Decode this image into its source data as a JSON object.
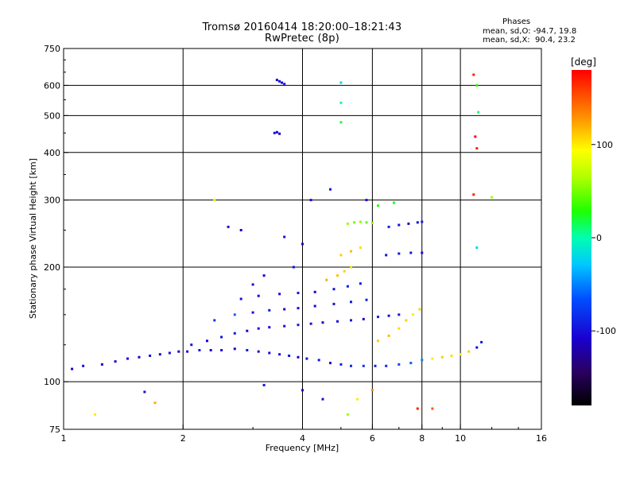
{
  "title": "Tromsø 20160414 18:20:00–18:21:43",
  "subtitle": "RwPretec (8p)",
  "phase_stats": {
    "heading": "Phases",
    "line1": "mean, sd,O: -94.7, 19.8",
    "line2": "mean, sd,X:  90.4, 23.2"
  },
  "colorbar": {
    "label": "[deg]",
    "range": [
      -180,
      180
    ],
    "ticks": [
      100,
      0,
      -100
    ],
    "tick_labels": [
      "100",
      "0",
      "-100"
    ]
  },
  "chart_data": {
    "type": "scatter",
    "title": "Tromsø 20160414 18:20:00–18:21:43",
    "subtitle": "RwPretec (8p)",
    "xlabel": "Frequency [MHz]",
    "ylabel": "Stationary phase Virtual Height [km]",
    "x_scale": "log",
    "y_scale": "log",
    "xlim": [
      1,
      16
    ],
    "ylim": [
      75,
      750
    ],
    "x_ticks": [
      1,
      2,
      4,
      6,
      8,
      10,
      16
    ],
    "x_tick_labels": [
      "1",
      "2",
      "4",
      "6",
      "8",
      "10",
      "16"
    ],
    "y_ticks": [
      75,
      100,
      200,
      300,
      400,
      500,
      600,
      750
    ],
    "y_tick_labels": [
      "75",
      "100",
      "200",
      "300",
      "400",
      "500",
      "600",
      "750"
    ],
    "grid": true,
    "color_variable": "phase [deg]",
    "points": [
      [
        1.05,
        108,
        -110
      ],
      [
        1.12,
        110,
        -100
      ],
      [
        1.25,
        111,
        -105
      ],
      [
        1.35,
        113,
        -115
      ],
      [
        1.45,
        115,
        -100
      ],
      [
        1.55,
        116,
        -110
      ],
      [
        1.65,
        117,
        -95
      ],
      [
        1.75,
        118,
        -105
      ],
      [
        1.85,
        119,
        -100
      ],
      [
        1.95,
        120,
        -110
      ],
      [
        2.05,
        120,
        -100
      ],
      [
        2.2,
        121,
        -95
      ],
      [
        2.35,
        121,
        -105
      ],
      [
        2.5,
        121,
        -100
      ],
      [
        2.7,
        122,
        -110
      ],
      [
        2.9,
        121,
        -95
      ],
      [
        3.1,
        120,
        -100
      ],
      [
        3.3,
        119,
        -105
      ],
      [
        3.5,
        118,
        -100
      ],
      [
        3.7,
        117,
        -95
      ],
      [
        3.9,
        116,
        -110
      ],
      [
        4.1,
        115,
        -100
      ],
      [
        4.4,
        114,
        -95
      ],
      [
        4.7,
        112,
        -100
      ],
      [
        5.0,
        111,
        -90
      ],
      [
        5.3,
        110,
        -85
      ],
      [
        5.7,
        110,
        -80
      ],
      [
        6.1,
        110,
        -90
      ],
      [
        6.5,
        110,
        -85
      ],
      [
        7.0,
        111,
        -70
      ],
      [
        7.5,
        112,
        -60
      ],
      [
        8.0,
        114,
        -50
      ],
      [
        8.5,
        115,
        100
      ],
      [
        9.0,
        116,
        110
      ],
      [
        9.5,
        117,
        105
      ],
      [
        10.0,
        118,
        100
      ],
      [
        10.5,
        120,
        110
      ],
      [
        11.0,
        123,
        -100
      ],
      [
        11.3,
        127,
        -95
      ],
      [
        2.1,
        125,
        -100
      ],
      [
        2.3,
        128,
        -110
      ],
      [
        2.5,
        131,
        -100
      ],
      [
        2.7,
        134,
        -95
      ],
      [
        2.9,
        136,
        -105
      ],
      [
        3.1,
        138,
        -100
      ],
      [
        3.3,
        139,
        -110
      ],
      [
        3.6,
        140,
        -100
      ],
      [
        3.9,
        141,
        -95
      ],
      [
        4.2,
        142,
        -100
      ],
      [
        4.5,
        143,
        -110
      ],
      [
        4.9,
        144,
        -100
      ],
      [
        5.3,
        145,
        -95
      ],
      [
        5.7,
        146,
        -105
      ],
      [
        6.2,
        148,
        -90
      ],
      [
        6.6,
        149,
        -100
      ],
      [
        7.0,
        150,
        -95
      ],
      [
        2.4,
        145,
        -80
      ],
      [
        2.7,
        150,
        -60
      ],
      [
        3.0,
        152,
        -100
      ],
      [
        3.3,
        154,
        -95
      ],
      [
        3.6,
        155,
        -110
      ],
      [
        3.9,
        156,
        -100
      ],
      [
        4.3,
        158,
        -105
      ],
      [
        4.8,
        160,
        -100
      ],
      [
        5.3,
        162,
        -95
      ],
      [
        5.8,
        164,
        -90
      ],
      [
        2.8,
        165,
        -100
      ],
      [
        3.1,
        168,
        -105
      ],
      [
        3.5,
        170,
        -100
      ],
      [
        3.9,
        171,
        -95
      ],
      [
        4.3,
        172,
        -110
      ],
      [
        4.8,
        175,
        -100
      ],
      [
        5.2,
        178,
        -90
      ],
      [
        5.6,
        181,
        -95
      ],
      [
        4.6,
        185,
        120
      ],
      [
        4.9,
        190,
        115
      ],
      [
        5.1,
        195,
        110
      ],
      [
        5.3,
        200,
        105
      ],
      [
        5.0,
        215,
        110
      ],
      [
        5.3,
        220,
        115
      ],
      [
        5.6,
        225,
        105
      ],
      [
        5.2,
        260,
        60
      ],
      [
        5.4,
        262,
        50
      ],
      [
        5.6,
        263,
        55
      ],
      [
        5.8,
        262,
        45
      ],
      [
        6.0,
        261,
        60
      ],
      [
        6.6,
        255,
        -90
      ],
      [
        7.0,
        258,
        -100
      ],
      [
        7.4,
        260,
        -110
      ],
      [
        7.8,
        262,
        -100
      ],
      [
        8.0,
        263,
        -95
      ],
      [
        6.5,
        215,
        -100
      ],
      [
        7.0,
        217,
        -95
      ],
      [
        7.5,
        218,
        -100
      ],
      [
        8.0,
        218,
        -105
      ],
      [
        6.2,
        128,
        110
      ],
      [
        6.6,
        132,
        115
      ],
      [
        7.0,
        138,
        105
      ],
      [
        7.3,
        145,
        110
      ],
      [
        7.6,
        150,
        100
      ],
      [
        7.9,
        155,
        110
      ],
      [
        3.45,
        620,
        -110
      ],
      [
        3.5,
        615,
        -100
      ],
      [
        3.55,
        610,
        -105
      ],
      [
        3.6,
        605,
        -95
      ],
      [
        3.4,
        450,
        -100
      ],
      [
        3.45,
        452,
        -105
      ],
      [
        3.5,
        448,
        -110
      ],
      [
        5.0,
        610,
        -20
      ],
      [
        5.0,
        540,
        0
      ],
      [
        5.0,
        480,
        20
      ],
      [
        10.8,
        640,
        170
      ],
      [
        11.0,
        600,
        30
      ],
      [
        11.1,
        510,
        10
      ],
      [
        10.9,
        440,
        180
      ],
      [
        11.0,
        410,
        170
      ],
      [
        10.8,
        310,
        170
      ],
      [
        12.0,
        305,
        60
      ],
      [
        11.0,
        225,
        -20
      ],
      [
        2.4,
        300,
        90
      ],
      [
        2.6,
        255,
        -100
      ],
      [
        2.8,
        250,
        -110
      ],
      [
        3.0,
        180,
        -100
      ],
      [
        3.2,
        190,
        -105
      ],
      [
        3.6,
        240,
        -100
      ],
      [
        3.8,
        200,
        -95
      ],
      [
        4.0,
        230,
        -110
      ],
      [
        4.2,
        300,
        -100
      ],
      [
        4.7,
        320,
        -95
      ],
      [
        5.8,
        300,
        -100
      ],
      [
        6.2,
        290,
        30
      ],
      [
        6.8,
        295,
        20
      ],
      [
        4.0,
        95,
        -110
      ],
      [
        4.5,
        90,
        -100
      ],
      [
        5.2,
        82,
        60
      ],
      [
        5.5,
        90,
        100
      ],
      [
        6.0,
        95,
        130
      ],
      [
        7.8,
        85,
        170
      ],
      [
        8.5,
        85,
        150
      ],
      [
        3.2,
        98,
        -100
      ],
      [
        1.2,
        82,
        100
      ],
      [
        1.7,
        88,
        120
      ],
      [
        1.6,
        94,
        -100
      ]
    ]
  }
}
